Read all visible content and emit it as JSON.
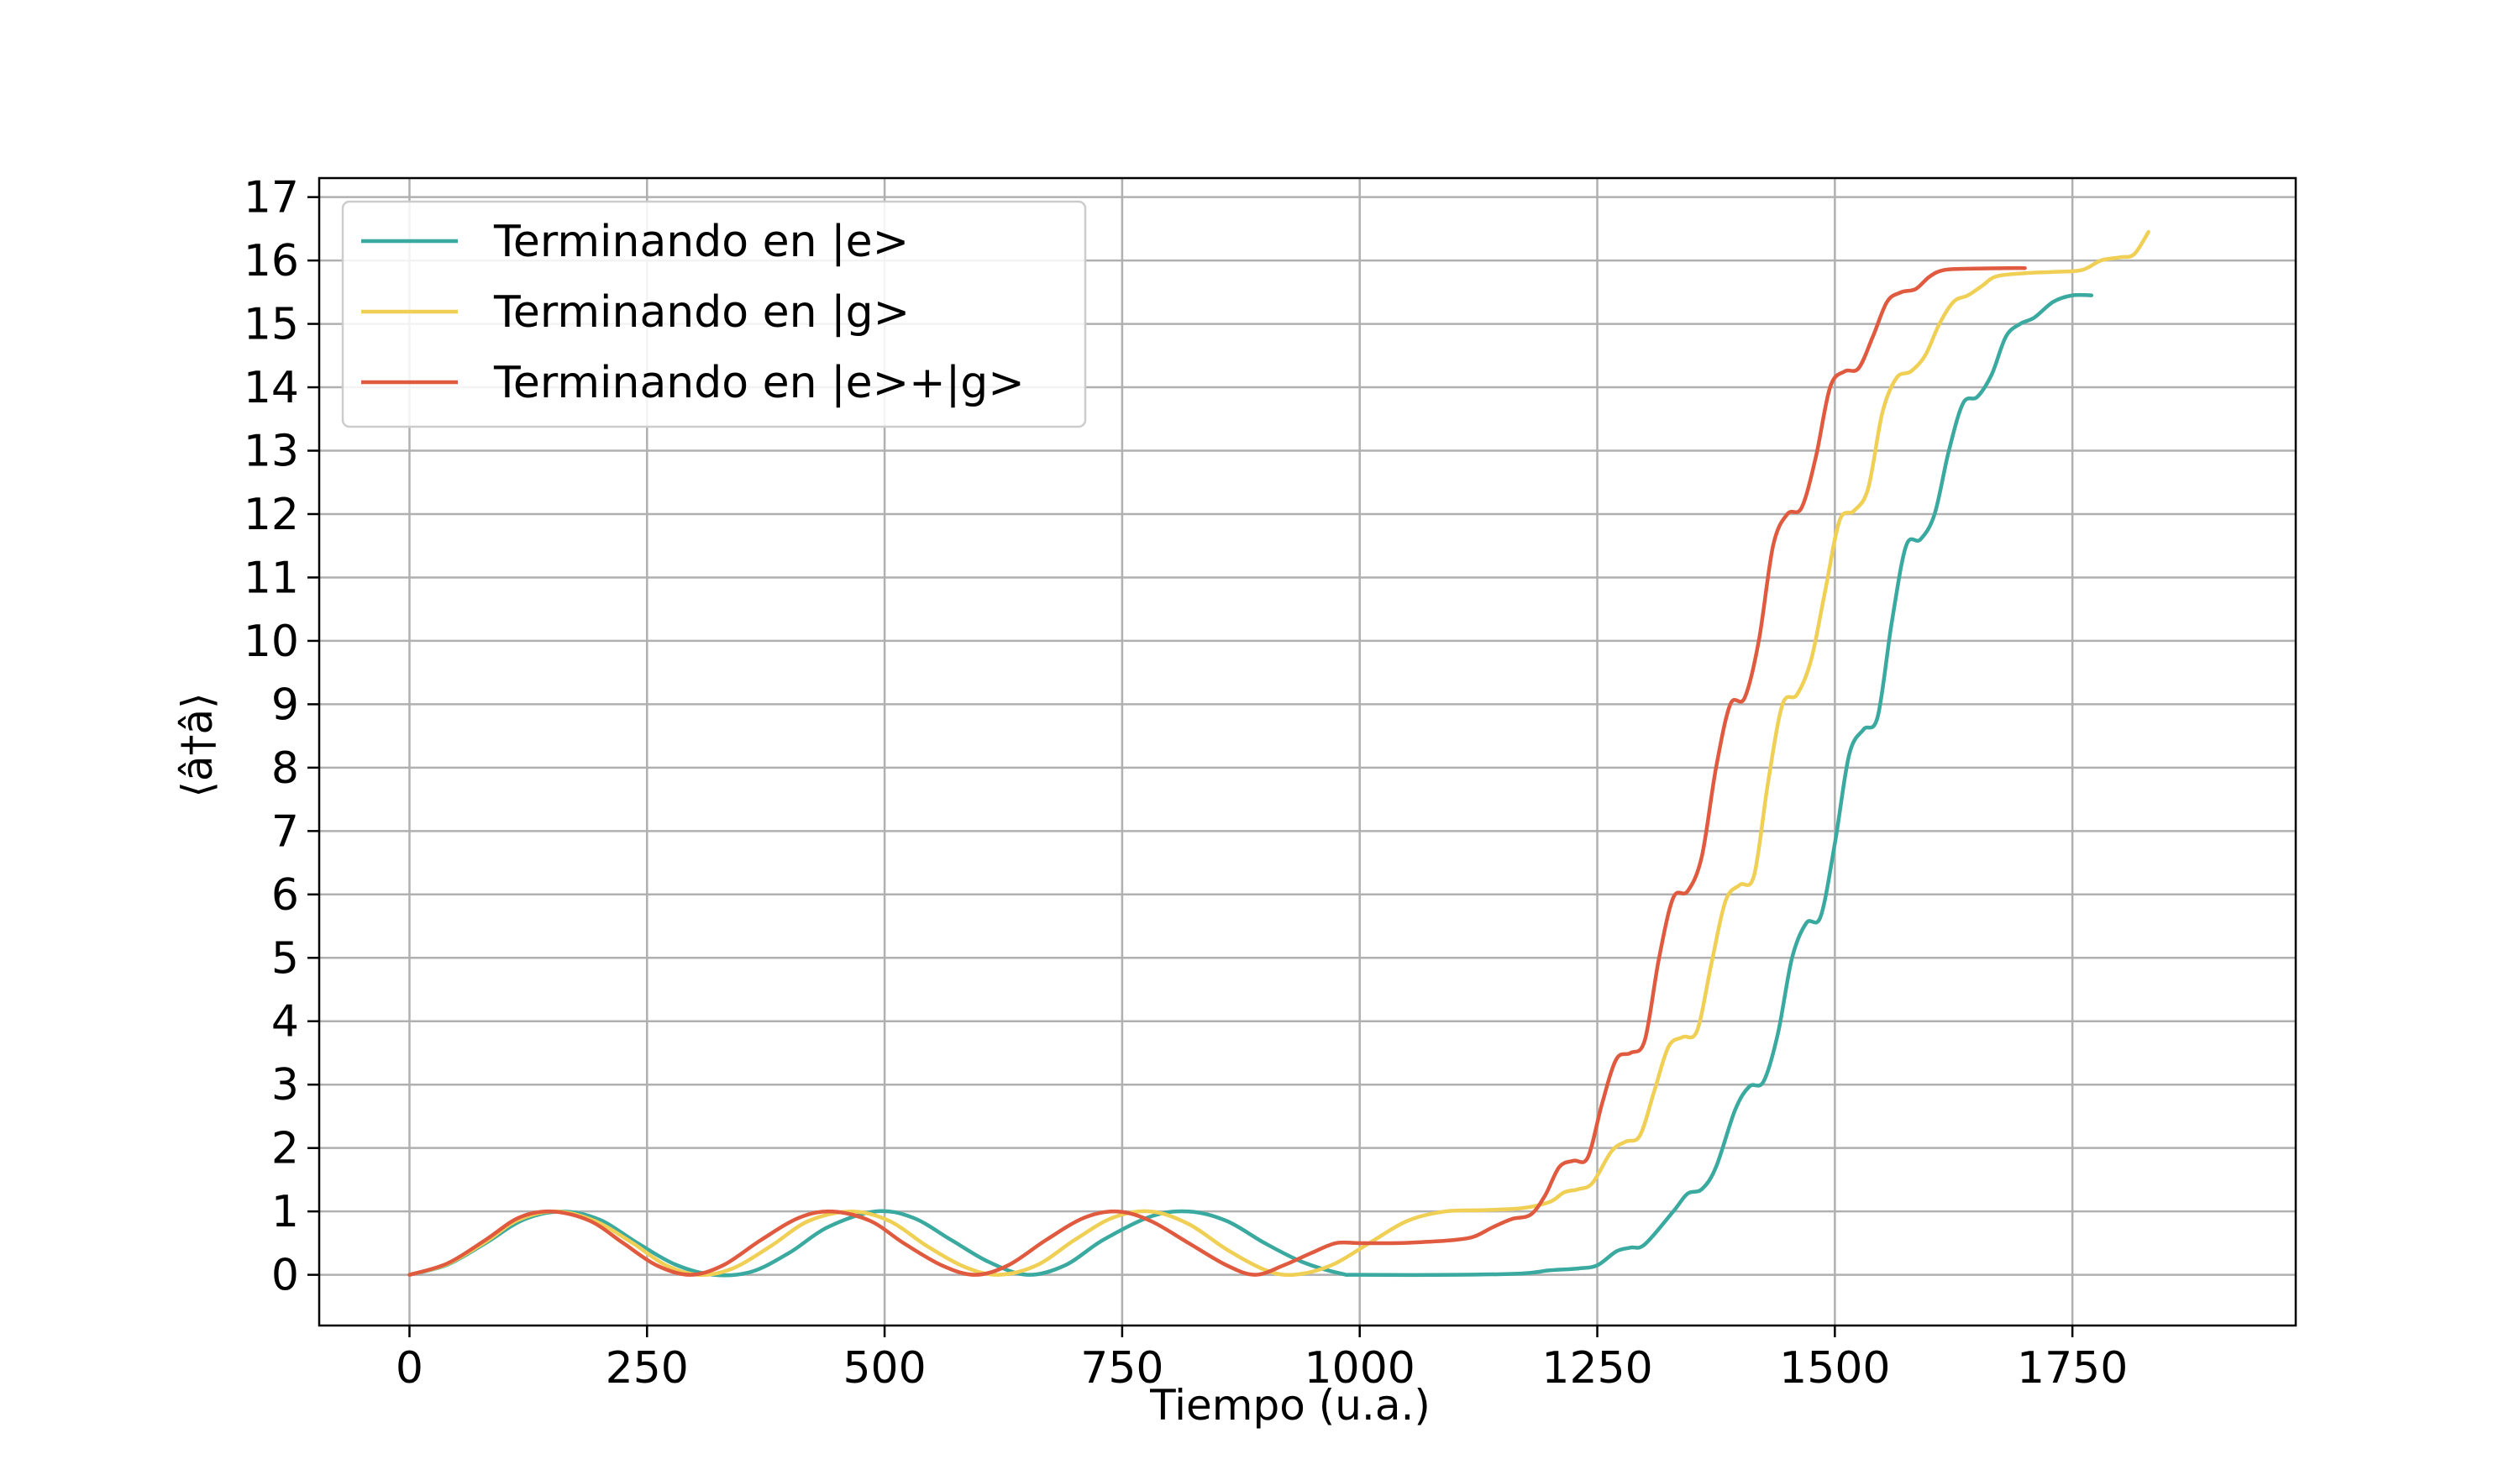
{
  "chart_data": {
    "type": "line",
    "title": "",
    "xlabel": "Tiempo (u.a.)",
    "ylabel": "⟨â†â⟩",
    "xlim": [
      -95,
      1985
    ],
    "ylim": [
      -0.8,
      17.3
    ],
    "xticks": [
      0,
      250,
      500,
      750,
      1000,
      1250,
      1500,
      1750
    ],
    "yticks": [
      0,
      1,
      2,
      3,
      4,
      5,
      6,
      7,
      8,
      9,
      10,
      11,
      12,
      13,
      14,
      15,
      16,
      17
    ],
    "grid": true,
    "legend_position": "top-left",
    "series": [
      {
        "name": "Terminando en |e>",
        "color": "#3aa99f",
        "points": [
          [
            0,
            0
          ],
          [
            40,
            0.16
          ],
          [
            80,
            0.5
          ],
          [
            120,
            0.87
          ],
          [
            160,
            1.0
          ],
          [
            200,
            0.87
          ],
          [
            240,
            0.5
          ],
          [
            280,
            0.16
          ],
          [
            320,
            0
          ],
          [
            360,
            0.05
          ],
          [
            400,
            0.35
          ],
          [
            440,
            0.75
          ],
          [
            490,
            1.0
          ],
          [
            530,
            0.9
          ],
          [
            570,
            0.55
          ],
          [
            610,
            0.2
          ],
          [
            650,
            0
          ],
          [
            690,
            0.15
          ],
          [
            730,
            0.55
          ],
          [
            780,
            0.92
          ],
          [
            820,
            1.0
          ],
          [
            860,
            0.85
          ],
          [
            900,
            0.5
          ],
          [
            940,
            0.2
          ],
          [
            980,
            0.02
          ],
          [
            1000,
            0
          ],
          [
            1100,
            0
          ],
          [
            1170,
            0.02
          ],
          [
            1200,
            0.07
          ],
          [
            1230,
            0.1
          ],
          [
            1250,
            0.15
          ],
          [
            1270,
            0.37
          ],
          [
            1285,
            0.43
          ],
          [
            1300,
            0.48
          ],
          [
            1330,
            1.0
          ],
          [
            1345,
            1.28
          ],
          [
            1360,
            1.35
          ],
          [
            1375,
            1.7
          ],
          [
            1395,
            2.6
          ],
          [
            1410,
            2.97
          ],
          [
            1425,
            3.05
          ],
          [
            1440,
            3.8
          ],
          [
            1455,
            5.0
          ],
          [
            1470,
            5.55
          ],
          [
            1485,
            5.65
          ],
          [
            1500,
            6.8
          ],
          [
            1515,
            8.2
          ],
          [
            1530,
            8.6
          ],
          [
            1545,
            8.8
          ],
          [
            1560,
            10.3
          ],
          [
            1575,
            11.5
          ],
          [
            1590,
            11.6
          ],
          [
            1605,
            12.0
          ],
          [
            1620,
            13.0
          ],
          [
            1635,
            13.75
          ],
          [
            1650,
            13.85
          ],
          [
            1665,
            14.2
          ],
          [
            1680,
            14.8
          ],
          [
            1695,
            15.0
          ],
          [
            1710,
            15.1
          ],
          [
            1730,
            15.35
          ],
          [
            1750,
            15.45
          ],
          [
            1770,
            15.45
          ]
        ]
      },
      {
        "name": "Terminando en |g>",
        "color": "#f0cf55",
        "points": [
          [
            0,
            0
          ],
          [
            40,
            0.17
          ],
          [
            80,
            0.52
          ],
          [
            115,
            0.87
          ],
          [
            155,
            1.0
          ],
          [
            195,
            0.85
          ],
          [
            235,
            0.5
          ],
          [
            270,
            0.15
          ],
          [
            305,
            0
          ],
          [
            340,
            0.1
          ],
          [
            380,
            0.45
          ],
          [
            420,
            0.85
          ],
          [
            465,
            1.0
          ],
          [
            505,
            0.85
          ],
          [
            545,
            0.45
          ],
          [
            585,
            0.12
          ],
          [
            620,
            0
          ],
          [
            660,
            0.15
          ],
          [
            700,
            0.55
          ],
          [
            740,
            0.9
          ],
          [
            780,
            1.0
          ],
          [
            820,
            0.8
          ],
          [
            860,
            0.4
          ],
          [
            900,
            0.08
          ],
          [
            930,
            0
          ],
          [
            970,
            0.15
          ],
          [
            1010,
            0.5
          ],
          [
            1050,
            0.85
          ],
          [
            1090,
            1.0
          ],
          [
            1130,
            1.02
          ],
          [
            1170,
            1.05
          ],
          [
            1200,
            1.15
          ],
          [
            1215,
            1.3
          ],
          [
            1230,
            1.35
          ],
          [
            1245,
            1.45
          ],
          [
            1265,
            1.95
          ],
          [
            1280,
            2.1
          ],
          [
            1295,
            2.2
          ],
          [
            1310,
            2.9
          ],
          [
            1325,
            3.6
          ],
          [
            1340,
            3.75
          ],
          [
            1355,
            3.85
          ],
          [
            1370,
            4.9
          ],
          [
            1385,
            5.9
          ],
          [
            1400,
            6.15
          ],
          [
            1415,
            6.3
          ],
          [
            1430,
            7.8
          ],
          [
            1445,
            9.0
          ],
          [
            1460,
            9.15
          ],
          [
            1475,
            9.7
          ],
          [
            1490,
            10.8
          ],
          [
            1505,
            11.9
          ],
          [
            1520,
            12.05
          ],
          [
            1535,
            12.4
          ],
          [
            1550,
            13.6
          ],
          [
            1565,
            14.15
          ],
          [
            1580,
            14.25
          ],
          [
            1595,
            14.5
          ],
          [
            1610,
            15.0
          ],
          [
            1625,
            15.35
          ],
          [
            1640,
            15.45
          ],
          [
            1655,
            15.6
          ],
          [
            1670,
            15.75
          ],
          [
            1700,
            15.8
          ],
          [
            1730,
            15.82
          ],
          [
            1760,
            15.85
          ],
          [
            1780,
            16.0
          ],
          [
            1800,
            16.05
          ],
          [
            1815,
            16.1
          ],
          [
            1830,
            16.45
          ]
        ]
      },
      {
        "name": "Terminando en |e>+|g>",
        "color": "#e05a3f",
        "points": [
          [
            0,
            0
          ],
          [
            40,
            0.18
          ],
          [
            80,
            0.55
          ],
          [
            115,
            0.9
          ],
          [
            150,
            1.0
          ],
          [
            190,
            0.85
          ],
          [
            225,
            0.5
          ],
          [
            260,
            0.15
          ],
          [
            295,
            0
          ],
          [
            330,
            0.15
          ],
          [
            370,
            0.55
          ],
          [
            410,
            0.9
          ],
          [
            445,
            1.0
          ],
          [
            485,
            0.85
          ],
          [
            520,
            0.5
          ],
          [
            560,
            0.15
          ],
          [
            595,
            0
          ],
          [
            630,
            0.15
          ],
          [
            670,
            0.55
          ],
          [
            710,
            0.9
          ],
          [
            745,
            1.0
          ],
          [
            780,
            0.85
          ],
          [
            820,
            0.5
          ],
          [
            860,
            0.15
          ],
          [
            890,
            0
          ],
          [
            920,
            0.15
          ],
          [
            950,
            0.35
          ],
          [
            975,
            0.5
          ],
          [
            1000,
            0.5
          ],
          [
            1040,
            0.5
          ],
          [
            1070,
            0.52
          ],
          [
            1100,
            0.55
          ],
          [
            1120,
            0.6
          ],
          [
            1140,
            0.75
          ],
          [
            1160,
            0.88
          ],
          [
            1180,
            0.95
          ],
          [
            1195,
            1.25
          ],
          [
            1210,
            1.7
          ],
          [
            1225,
            1.8
          ],
          [
            1240,
            1.85
          ],
          [
            1255,
            2.7
          ],
          [
            1270,
            3.4
          ],
          [
            1285,
            3.5
          ],
          [
            1300,
            3.7
          ],
          [
            1315,
            5.0
          ],
          [
            1330,
            5.95
          ],
          [
            1345,
            6.05
          ],
          [
            1360,
            6.6
          ],
          [
            1375,
            8.0
          ],
          [
            1390,
            9.0
          ],
          [
            1405,
            9.1
          ],
          [
            1420,
            10.0
          ],
          [
            1435,
            11.5
          ],
          [
            1450,
            12.0
          ],
          [
            1465,
            12.1
          ],
          [
            1480,
            12.9
          ],
          [
            1495,
            14.0
          ],
          [
            1510,
            14.25
          ],
          [
            1525,
            14.3
          ],
          [
            1540,
            14.8
          ],
          [
            1555,
            15.35
          ],
          [
            1570,
            15.5
          ],
          [
            1585,
            15.55
          ],
          [
            1600,
            15.75
          ],
          [
            1615,
            15.85
          ],
          [
            1640,
            15.87
          ],
          [
            1680,
            15.88
          ],
          [
            1700,
            15.88
          ]
        ]
      }
    ]
  }
}
